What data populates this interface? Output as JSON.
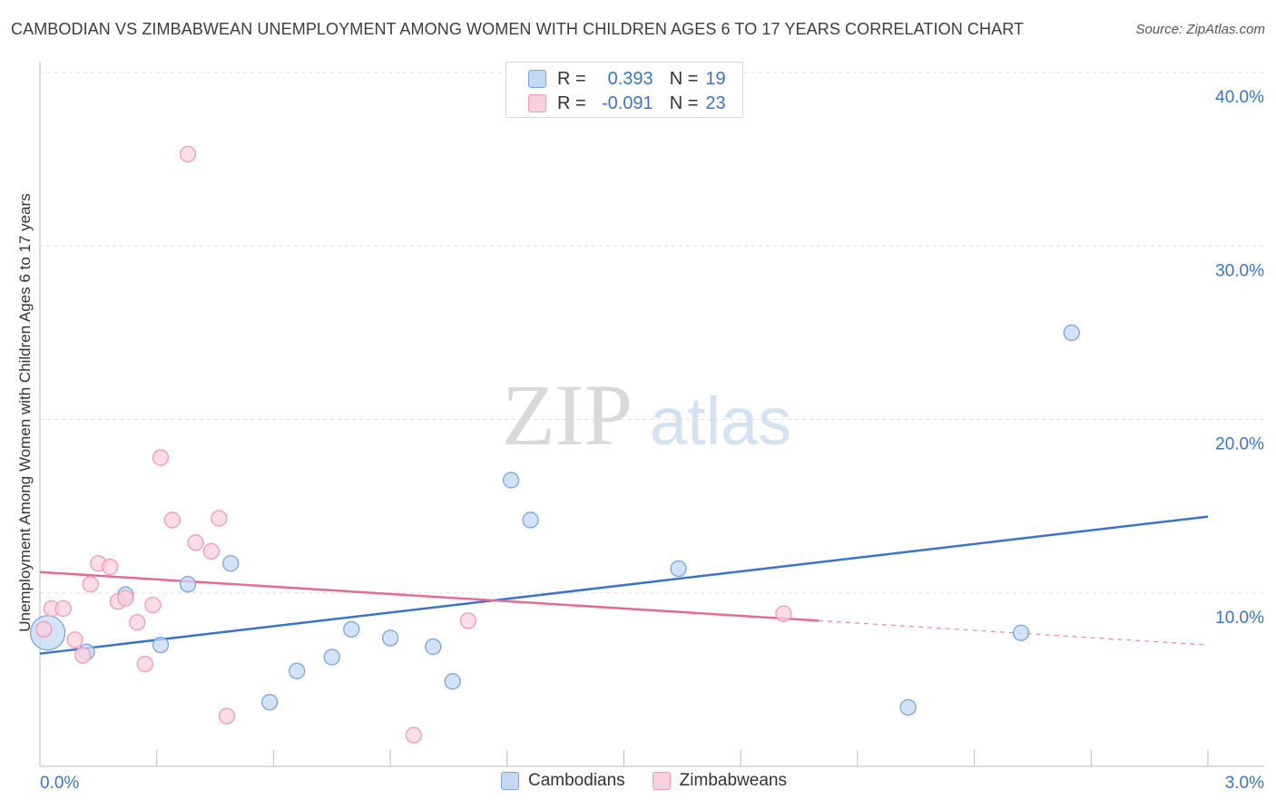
{
  "title": "CAMBODIAN VS ZIMBABWEAN UNEMPLOYMENT AMONG WOMEN WITH CHILDREN AGES 6 TO 17 YEARS CORRELATION CHART",
  "source": "Source: ZipAtlas.com",
  "watermark": {
    "zip": "ZIP",
    "atlas": "atlas"
  },
  "legend": {
    "rows": [
      {
        "r_label": "R =",
        "r_value": "0.393",
        "n_label": "N =",
        "n_value": "19"
      },
      {
        "r_label": "R =",
        "r_value": "-0.091",
        "n_label": "N =",
        "n_value": "23"
      }
    ]
  },
  "bottom_legend": {
    "cambodians": "Cambodians",
    "zimbabweans": "Zimbabweans"
  },
  "colors": {
    "blue_fill": "#c3d8f5",
    "blue_stroke": "#7ba5e0",
    "blue_line": "#3a74c9",
    "pink_fill": "#fbd0de",
    "pink_stroke": "#ef9ab6",
    "pink_line": "#e46b95",
    "axis_text": "#3a74c9",
    "grid": "#dddddd"
  },
  "chart_data": {
    "type": "scatter",
    "title": "CAMBODIAN VS ZIMBABWEAN UNEMPLOYMENT AMONG WOMEN WITH CHILDREN AGES 6 TO 17 YEARS CORRELATION CHART",
    "xlabel": "",
    "ylabel": "Unemployment Among Women with Children Ages 6 to 17 years",
    "xlim": [
      0,
      3.0
    ],
    "ylim": [
      0,
      40.0
    ],
    "x_tick_labels": [
      "0.0%",
      "3.0%"
    ],
    "y_ticks": [
      10,
      20,
      30,
      40
    ],
    "y_tick_labels": [
      "10.0%",
      "20.0%",
      "30.0%",
      "40.0%"
    ],
    "grid": true,
    "series": [
      {
        "name": "Cambodians",
        "color": "#7ba5e0",
        "points": [
          {
            "x": 0.02,
            "y": 7.7,
            "large": true
          },
          {
            "x": 0.12,
            "y": 6.6
          },
          {
            "x": 0.22,
            "y": 9.9
          },
          {
            "x": 0.31,
            "y": 7.0
          },
          {
            "x": 0.38,
            "y": 10.5
          },
          {
            "x": 0.49,
            "y": 11.7
          },
          {
            "x": 0.59,
            "y": 3.7
          },
          {
            "x": 0.66,
            "y": 5.5
          },
          {
            "x": 0.75,
            "y": 6.3
          },
          {
            "x": 0.8,
            "y": 7.9
          },
          {
            "x": 0.9,
            "y": 7.4
          },
          {
            "x": 1.01,
            "y": 6.9
          },
          {
            "x": 1.06,
            "y": 4.9
          },
          {
            "x": 1.21,
            "y": 16.5
          },
          {
            "x": 1.26,
            "y": 14.2
          },
          {
            "x": 1.64,
            "y": 11.4
          },
          {
            "x": 2.23,
            "y": 3.4
          },
          {
            "x": 2.52,
            "y": 7.7
          },
          {
            "x": 2.65,
            "y": 25.0
          }
        ],
        "trend": {
          "x1": 0,
          "y1": 6.5,
          "x2": 3.0,
          "y2": 14.4
        }
      },
      {
        "name": "Zimbabweans",
        "color": "#ef9ab6",
        "points": [
          {
            "x": 0.01,
            "y": 7.9
          },
          {
            "x": 0.03,
            "y": 9.1
          },
          {
            "x": 0.06,
            "y": 9.1
          },
          {
            "x": 0.09,
            "y": 7.3
          },
          {
            "x": 0.11,
            "y": 6.4
          },
          {
            "x": 0.13,
            "y": 10.5
          },
          {
            "x": 0.15,
            "y": 11.7
          },
          {
            "x": 0.18,
            "y": 11.5
          },
          {
            "x": 0.2,
            "y": 9.5
          },
          {
            "x": 0.22,
            "y": 9.7
          },
          {
            "x": 0.25,
            "y": 8.3
          },
          {
            "x": 0.27,
            "y": 5.9
          },
          {
            "x": 0.29,
            "y": 9.3
          },
          {
            "x": 0.31,
            "y": 17.8
          },
          {
            "x": 0.34,
            "y": 14.2
          },
          {
            "x": 0.38,
            "y": 35.3
          },
          {
            "x": 0.4,
            "y": 12.9
          },
          {
            "x": 0.44,
            "y": 12.4
          },
          {
            "x": 0.46,
            "y": 14.3
          },
          {
            "x": 0.48,
            "y": 2.9
          },
          {
            "x": 0.96,
            "y": 1.8
          },
          {
            "x": 1.1,
            "y": 8.4
          },
          {
            "x": 1.91,
            "y": 8.8
          }
        ],
        "trend": {
          "x1": 0,
          "y1": 11.2,
          "x2": 2.0,
          "y2": 8.4
        },
        "trend_dashed": {
          "x1": 2.0,
          "y1": 8.4,
          "x2": 3.0,
          "y2": 7.0
        }
      }
    ]
  }
}
